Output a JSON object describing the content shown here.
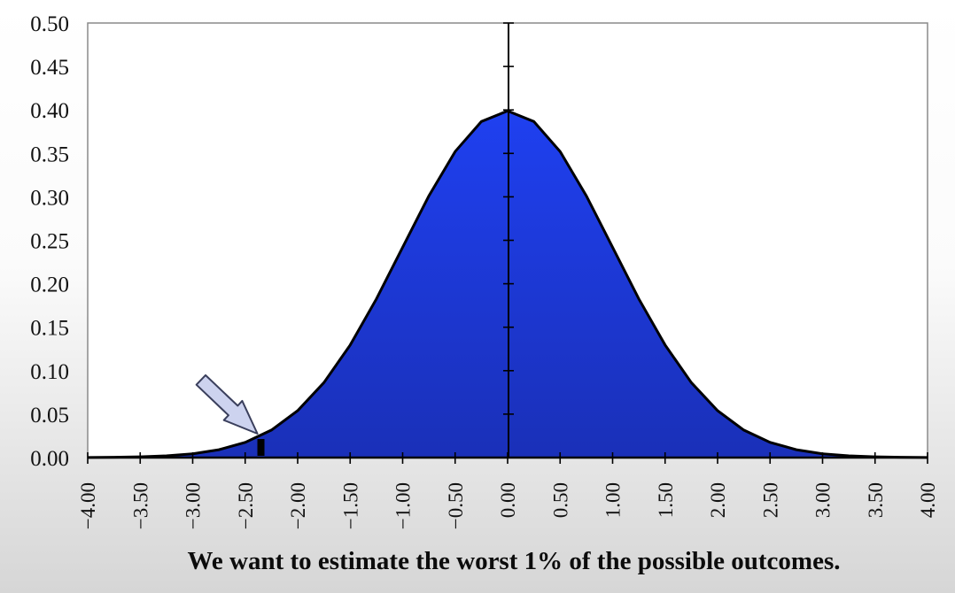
{
  "chart_data": {
    "type": "area",
    "title": "",
    "xlabel": "",
    "ylabel": "",
    "xlim": [
      -4.0,
      4.0
    ],
    "ylim": [
      0.0,
      0.5
    ],
    "grid": false,
    "legend": "none",
    "series": [
      {
        "values_description": "",
        "x": [
          -4.0,
          -3.75,
          -3.5,
          -3.25,
          -3.0,
          -2.75,
          -2.5,
          -2.25,
          -2.0,
          -1.75,
          -1.5,
          -1.25,
          -1.0,
          -0.75,
          -0.5,
          -0.25,
          0.0,
          0.25,
          0.5,
          0.75,
          1.0,
          1.25,
          1.5,
          1.75,
          2.0,
          2.25,
          2.5,
          2.75,
          3.0,
          3.25,
          3.5,
          3.75,
          4.0
        ],
        "y": [
          0.0001,
          0.0004,
          0.0009,
          0.002,
          0.0044,
          0.0091,
          0.0175,
          0.0317,
          0.054,
          0.0863,
          0.1295,
          0.1826,
          0.242,
          0.3011,
          0.3521,
          0.3867,
          0.3989,
          0.3867,
          0.3521,
          0.3011,
          0.242,
          0.1826,
          0.1295,
          0.0863,
          0.054,
          0.0317,
          0.0175,
          0.0091,
          0.0044,
          0.002,
          0.0009,
          0.0004,
          0.0001
        ]
      }
    ],
    "y_ticks": [
      "0.00",
      "0.05",
      "0.10",
      "0.15",
      "0.20",
      "0.25",
      "0.30",
      "0.35",
      "0.40",
      "0.45",
      "0.50"
    ],
    "x_ticks": [
      "-4.00",
      "-3.50",
      "-3.00",
      "-2.50",
      "-2.00",
      "-1.50",
      "-1.00",
      "-0.50",
      "0.00",
      "0.50",
      "1.00",
      "1.50",
      "2.00",
      "2.50",
      "3.00",
      "3.50",
      "4.00"
    ],
    "annotations": [
      {
        "type": "arrow",
        "points_to_x": -2.4
      },
      {
        "type": "marker",
        "x": -2.35
      }
    ],
    "fill_color": "#1c3ae8",
    "line_color": "#000000"
  },
  "caption": "We want to estimate the worst 1% of the possible outcomes."
}
